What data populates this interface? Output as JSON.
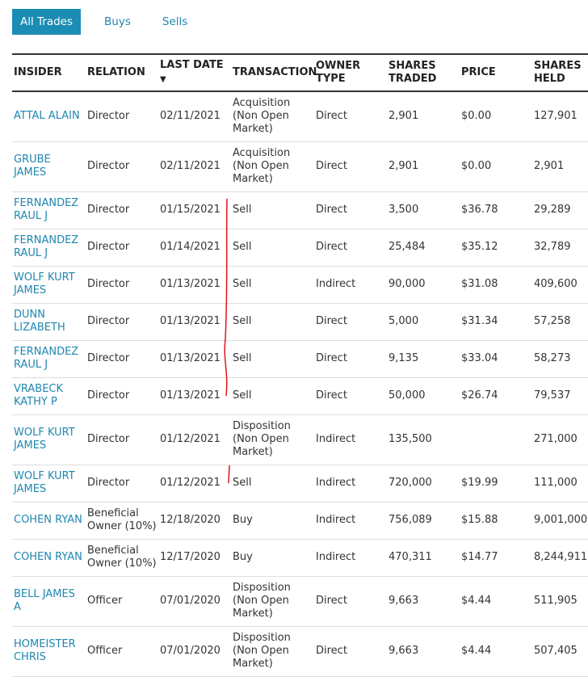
{
  "tabs": [
    "All Trades",
    "Buys",
    "Sells"
  ],
  "table": {
    "headers": [
      "INSIDER",
      "RELATION",
      "LAST DATE",
      "TRANSACTION",
      "OWNER TYPE",
      "SHARES TRADED",
      "PRICE",
      "SHARES HELD"
    ],
    "rows": [
      [
        "ATTAL ALAIN",
        "Director",
        "02/11/2021",
        "Acquisition (Non Open Market)",
        "Direct",
        "2,901",
        "$0.00",
        "127,901"
      ],
      [
        "GRUBE JAMES",
        "Director",
        "02/11/2021",
        "Acquisition (Non Open Market)",
        "Direct",
        "2,901",
        "$0.00",
        "2,901"
      ],
      [
        "FERNANDEZ RAUL J",
        "Director",
        "01/15/2021",
        "Sell",
        "Direct",
        "3,500",
        "$36.78",
        "29,289"
      ],
      [
        "FERNANDEZ RAUL J",
        "Director",
        "01/14/2021",
        "Sell",
        "Direct",
        "25,484",
        "$35.12",
        "32,789"
      ],
      [
        "WOLF KURT JAMES",
        "Director",
        "01/13/2021",
        "Sell",
        "Indirect",
        "90,000",
        "$31.08",
        "409,600"
      ],
      [
        "DUNN LIZABETH",
        "Director",
        "01/13/2021",
        "Sell",
        "Direct",
        "5,000",
        "$31.34",
        "57,258"
      ],
      [
        "FERNANDEZ RAUL J",
        "Director",
        "01/13/2021",
        "Sell",
        "Direct",
        "9,135",
        "$33.04",
        "58,273"
      ],
      [
        "VRABECK KATHY P",
        "Director",
        "01/13/2021",
        "Sell",
        "Direct",
        "50,000",
        "$26.74",
        "79,537"
      ],
      [
        "WOLF KURT JAMES",
        "Director",
        "01/12/2021",
        "Disposition (Non Open Market)",
        "Indirect",
        "135,500",
        null,
        "271,000"
      ],
      [
        "WOLF KURT JAMES",
        "Director",
        "01/12/2021",
        "Sell",
        "Indirect",
        "720,000",
        "$19.99",
        "111,000"
      ],
      [
        "COHEN RYAN",
        "Beneficial Owner (10%)",
        "12/18/2020",
        "Buy",
        "Indirect",
        "756,089",
        "$15.88",
        "9,001,000"
      ],
      [
        "COHEN RYAN",
        "Beneficial Owner (10%)",
        "12/17/2020",
        "Buy",
        "Indirect",
        "470,311",
        "$14.77",
        "8,244,911"
      ],
      [
        "BELL JAMES A",
        "Officer",
        "07/01/2020",
        "Disposition (Non Open Market)",
        "Direct",
        "9,663",
        "$4.44",
        "511,905"
      ],
      [
        "HOMEISTER CHRIS",
        "Officer",
        "07/01/2020",
        "Disposition (Non Open Market)",
        "Direct",
        "9,663",
        "$4.44",
        "507,405"
      ]
    ]
  }
}
